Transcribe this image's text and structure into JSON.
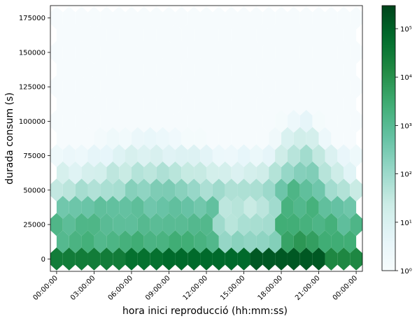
{
  "chart_data": {
    "type": "heatmap",
    "subtype": "hexbin",
    "xlabel": "hora inici reproducció (hh:mm:ss)",
    "ylabel": "durada consum (s)",
    "x_unit": "hours",
    "xlim": [
      -0.5,
      24.5
    ],
    "ylim": [
      -9000,
      184000
    ],
    "x_ticks": [
      {
        "value": 0,
        "label": "00:00:00"
      },
      {
        "value": 3,
        "label": "03:00:00"
      },
      {
        "value": 6,
        "label": "06:00:00"
      },
      {
        "value": 9,
        "label": "09:00:00"
      },
      {
        "value": 12,
        "label": "12:00:00"
      },
      {
        "value": 15,
        "label": "15:00:00"
      },
      {
        "value": 18,
        "label": "18:00:00"
      },
      {
        "value": 21,
        "label": "21:00:00"
      },
      {
        "value": 24,
        "label": "00:00:00"
      }
    ],
    "y_ticks": [
      {
        "value": 0,
        "label": "0"
      },
      {
        "value": 25000,
        "label": "25000"
      },
      {
        "value": 50000,
        "label": "50000"
      },
      {
        "value": 75000,
        "label": "75000"
      },
      {
        "value": 100000,
        "label": "100000"
      },
      {
        "value": 125000,
        "label": "125000"
      },
      {
        "value": 150000,
        "label": "150000"
      },
      {
        "value": 175000,
        "label": "175000"
      }
    ],
    "colorbar": {
      "scale": "log",
      "cmap": "BuGn",
      "range": [
        1,
        300000
      ],
      "ticks": [
        {
          "value": 1,
          "label": "10⁰"
        },
        {
          "value": 10,
          "label": "10¹"
        },
        {
          "value": 100,
          "label": "10²"
        },
        {
          "value": 1000,
          "label": "10³"
        },
        {
          "value": 10000,
          "label": "10⁴"
        },
        {
          "value": 100000,
          "label": "10⁵"
        }
      ]
    },
    "grid": false,
    "bin_spacing": {
      "x_hours": 1.0,
      "y_seconds": 12500
    }
  }
}
